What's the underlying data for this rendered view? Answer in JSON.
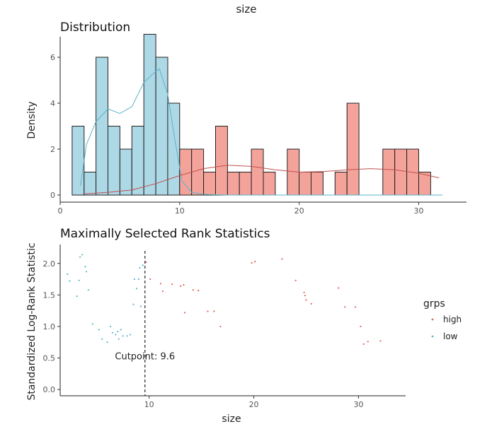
{
  "figure_title": "size",
  "chart_data": [
    {
      "type": "bar",
      "title": "Distribution",
      "xlabel": "",
      "ylabel": "Density",
      "xlim": [
        0,
        34
      ],
      "ylim": [
        0,
        7.2
      ],
      "x_ticks": [
        0,
        10,
        20,
        30
      ],
      "y_ticks": [
        0,
        2,
        4,
        6
      ],
      "bin_width": 1,
      "series": [
        {
          "name": "low",
          "color": "#ADD8E6",
          "bins": [
            {
              "x": 1.5,
              "y": 3
            },
            {
              "x": 2.5,
              "y": 1
            },
            {
              "x": 3.5,
              "y": 6
            },
            {
              "x": 4.5,
              "y": 3
            },
            {
              "x": 5.5,
              "y": 2
            },
            {
              "x": 6.5,
              "y": 3
            },
            {
              "x": 7.5,
              "y": 7
            },
            {
              "x": 8.5,
              "y": 6
            },
            {
              "x": 9.5,
              "y": 4
            }
          ],
          "density": [
            [
              1.7,
              0.4
            ],
            [
              2.2,
              2.2
            ],
            [
              3,
              3.2
            ],
            [
              4,
              3.75
            ],
            [
              5,
              3.55
            ],
            [
              6,
              3.85
            ],
            [
              7,
              4.9
            ],
            [
              7.7,
              5.25
            ],
            [
              8.3,
              5.5
            ],
            [
              9,
              4.4
            ],
            [
              9.6,
              2.4
            ],
            [
              10.2,
              0.6
            ],
            [
              11,
              0.12
            ],
            [
              12,
              0.03
            ],
            [
              14,
              0.0
            ],
            [
              32,
              0.0
            ]
          ]
        },
        {
          "name": "high",
          "color": "#F4A39B",
          "bins": [
            {
              "x": 10.5,
              "y": 2
            },
            {
              "x": 11.5,
              "y": 2
            },
            {
              "x": 12.5,
              "y": 1
            },
            {
              "x": 13.5,
              "y": 3
            },
            {
              "x": 14.5,
              "y": 1
            },
            {
              "x": 15.5,
              "y": 1
            },
            {
              "x": 16.5,
              "y": 2
            },
            {
              "x": 17.5,
              "y": 1
            },
            {
              "x": 19.5,
              "y": 2
            },
            {
              "x": 20.5,
              "y": 1
            },
            {
              "x": 21.5,
              "y": 1
            },
            {
              "x": 23.5,
              "y": 1
            },
            {
              "x": 24.5,
              "y": 4
            },
            {
              "x": 27.5,
              "y": 2
            },
            {
              "x": 28.5,
              "y": 2
            },
            {
              "x": 29.5,
              "y": 2
            },
            {
              "x": 30.5,
              "y": 1
            }
          ],
          "density": [
            [
              2,
              0.05
            ],
            [
              4,
              0.12
            ],
            [
              6,
              0.22
            ],
            [
              8,
              0.5
            ],
            [
              10,
              0.85
            ],
            [
              12,
              1.15
            ],
            [
              14,
              1.3
            ],
            [
              16,
              1.25
            ],
            [
              18,
              1.1
            ],
            [
              20,
              1.0
            ],
            [
              22,
              1.02
            ],
            [
              24,
              1.1
            ],
            [
              26,
              1.15
            ],
            [
              28,
              1.1
            ],
            [
              30,
              0.95
            ],
            [
              31.7,
              0.75
            ]
          ]
        }
      ]
    },
    {
      "type": "scatter",
      "title": "Maximally Selected Rank Statistics",
      "xlabel": "size",
      "ylabel": "Standardized Log-Rank Statistic",
      "xlim": [
        1.5,
        34.5
      ],
      "ylim": [
        -0.1,
        2.3
      ],
      "x_ticks": [
        10,
        20,
        30
      ],
      "y_ticks": [
        0.0,
        0.5,
        1.0,
        1.5,
        2.0
      ],
      "y_tick_labels": [
        "0.0",
        "0.5",
        "1.0",
        "1.5",
        "2.0"
      ],
      "cutpoint": 9.6,
      "cutpoint_label": "Cutpoint: 9.6",
      "legend": {
        "title": "grps",
        "position": "right",
        "entries": [
          "high",
          "low"
        ]
      },
      "series": [
        {
          "name": "low",
          "color": "#5BB5C8",
          "points": [
            [
              2.2,
              1.83
            ],
            [
              2.4,
              1.72
            ],
            [
              3.1,
              1.48
            ],
            [
              3.3,
              1.73
            ],
            [
              3.4,
              2.1
            ],
            [
              3.6,
              2.14
            ],
            [
              3.9,
              1.95
            ],
            [
              4.0,
              1.87
            ],
            [
              4.2,
              1.58
            ],
            [
              4.6,
              1.04
            ],
            [
              5.2,
              0.95
            ],
            [
              5.5,
              0.8
            ],
            [
              6.0,
              0.75
            ],
            [
              6.3,
              1.0
            ],
            [
              6.5,
              0.9
            ],
            [
              6.8,
              0.87
            ],
            [
              7.0,
              0.92
            ],
            [
              7.1,
              0.8
            ],
            [
              7.3,
              0.95
            ],
            [
              7.5,
              0.85
            ],
            [
              7.9,
              0.85
            ],
            [
              8.2,
              0.87
            ],
            [
              8.5,
              1.35
            ],
            [
              8.6,
              1.75
            ],
            [
              8.8,
              1.6
            ],
            [
              9.0,
              1.75
            ],
            [
              9.1,
              1.93
            ],
            [
              9.2,
              1.32
            ],
            [
              9.4,
              1.97
            ]
          ]
        },
        {
          "name": "high",
          "color": "#E0655D",
          "points": [
            [
              9.7,
              2.02
            ],
            [
              10.1,
              1.75
            ],
            [
              11.1,
              1.68
            ],
            [
              11.3,
              1.56
            ],
            [
              12.2,
              1.67
            ],
            [
              13.0,
              1.64
            ],
            [
              13.3,
              1.66
            ],
            [
              13.4,
              1.22
            ],
            [
              14.2,
              1.58
            ],
            [
              14.7,
              1.57
            ],
            [
              15.6,
              1.24
            ],
            [
              16.2,
              1.24
            ],
            [
              16.8,
              1.0
            ],
            [
              19.8,
              2.01
            ],
            [
              20.1,
              2.03
            ],
            [
              22.7,
              2.07
            ],
            [
              24.0,
              1.73
            ],
            [
              24.8,
              1.54
            ],
            [
              24.9,
              1.49
            ],
            [
              25.0,
              1.42
            ],
            [
              25.5,
              1.36
            ],
            [
              28.1,
              1.61
            ],
            [
              28.7,
              1.31
            ],
            [
              29.7,
              1.31
            ],
            [
              30.2,
              1.0
            ],
            [
              30.5,
              0.72
            ],
            [
              30.9,
              0.76
            ],
            [
              32.1,
              0.77
            ]
          ]
        }
      ]
    }
  ]
}
